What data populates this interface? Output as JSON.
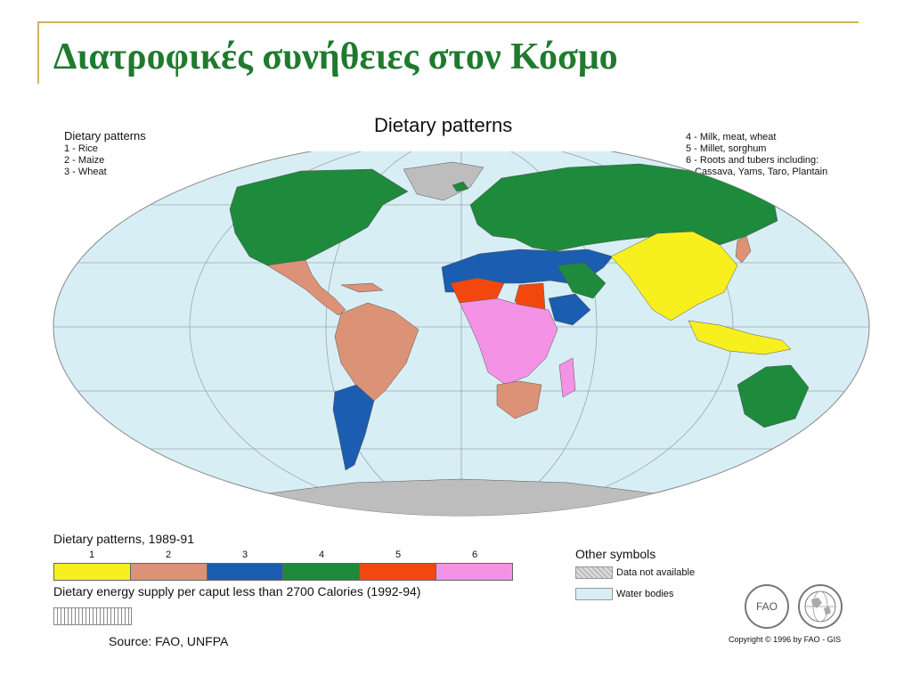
{
  "slide": {
    "title": "Διατροφικές συνήθειες στον Κόσμο"
  },
  "map": {
    "title": "Dietary patterns",
    "legend_left": {
      "heading": "Dietary patterns",
      "items": [
        "1 - Rice",
        "2 - Maize",
        "3 - Wheat"
      ]
    },
    "legend_right": {
      "items": [
        "4 - Milk, meat, wheat",
        "5 - Millet, sorghum",
        "6 - Roots and tubers including:"
      ],
      "continuation": "Cassava, Yams, Taro, Plantain"
    },
    "colors": {
      "1": "#f7f01e",
      "2": "#dc9276",
      "3": "#1b5db1",
      "4": "#1d8a3c",
      "5": "#f2480f",
      "6": "#f492e6",
      "water": "#d8eef5",
      "na": "#bdbdbd"
    }
  },
  "bottom_legend": {
    "title": "Dietary patterns, 1989-91",
    "numbers": [
      "1",
      "2",
      "3",
      "4",
      "5",
      "6"
    ],
    "energy_text": "Dietary energy supply per caput less than 2700 Calories (1992-94)",
    "source": "Source: FAO, UNFPA"
  },
  "other_symbols": {
    "title": "Other symbols",
    "items": [
      "Data not available",
      "Water bodies"
    ]
  },
  "logos": [
    "FAO-logo-icon",
    "GIS-globe-icon"
  ],
  "logo_text": {
    "fao": "FAO"
  },
  "copyright": "Copyright © 1996 by FAO - GIS"
}
